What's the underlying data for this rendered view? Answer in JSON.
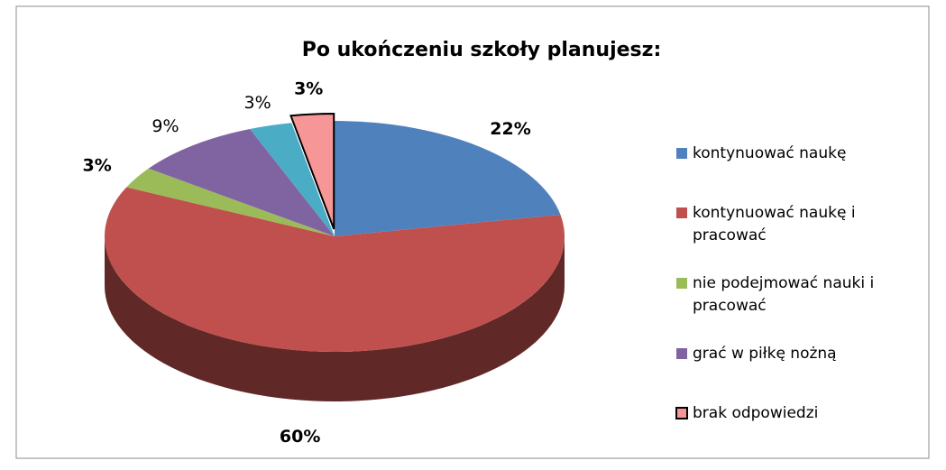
{
  "chart_data": {
    "type": "pie",
    "title": "Po ukończeniu szkoły planujesz:",
    "categories": [
      "kontynuować naukę",
      "kontynuować naukę i pracować",
      "nie podejmować nauki i pracować",
      "grać w piłkę nożną",
      null,
      "brak odpowiedzi"
    ],
    "values": [
      22,
      60,
      3,
      9,
      3,
      3
    ],
    "colors": [
      "#4f81bd",
      "#c0504d",
      "#9bbb59",
      "#8064a2",
      "#4bacc6",
      "#f79696"
    ],
    "label_bold": [
      true,
      true,
      true,
      false,
      false,
      true
    ],
    "legend": "right"
  }
}
